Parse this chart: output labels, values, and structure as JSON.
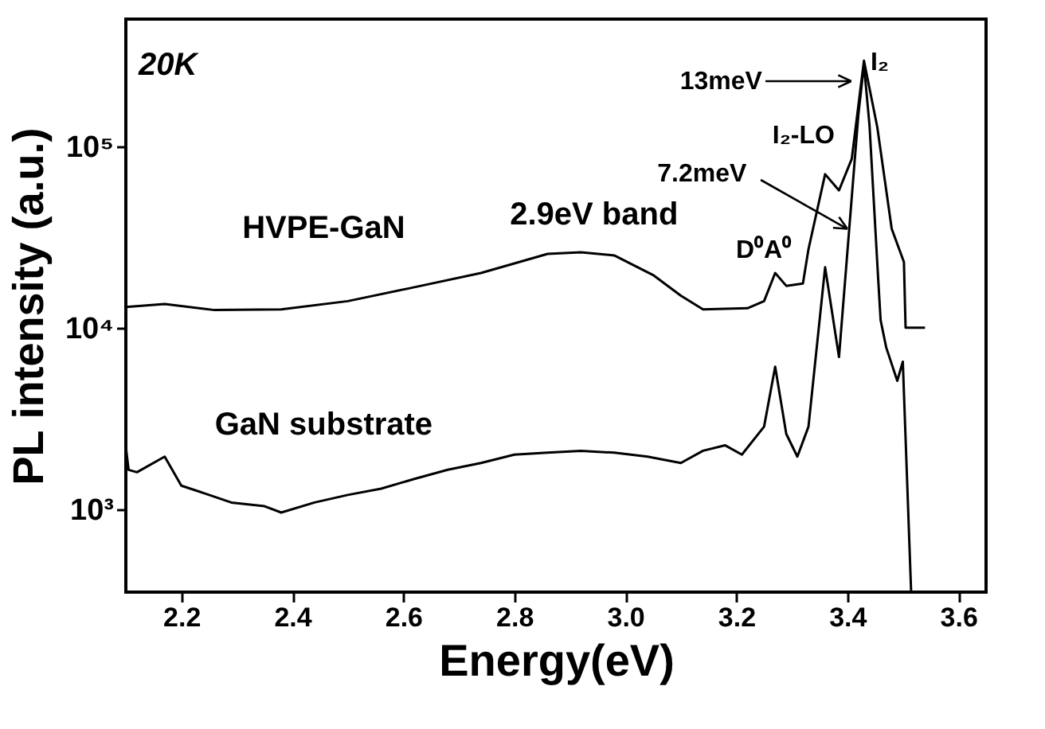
{
  "chart_data": {
    "type": "line",
    "xlabel": "Energy(eV)",
    "ylabel": "PL intensity (a.u.)",
    "log": "y",
    "grid": false,
    "xlim": [
      2.1,
      3.65
    ],
    "xticks": [
      2.2,
      2.4,
      2.6,
      2.8,
      {
        "value": 3,
        "label": "3.0"
      },
      3.2,
      3.4,
      3.6
    ],
    "ylim": [
      350,
      500000
    ],
    "yticks": [
      {
        "value": 1000,
        "label": "10³"
      },
      {
        "value": 10000,
        "label": "10⁴"
      },
      {
        "value": 100000,
        "label": "10⁵"
      }
    ],
    "series": [
      {
        "name": "HVPE-GaN",
        "color": "#000000",
        "x": [
          2.1,
          2.17,
          2.26,
          2.38,
          2.5,
          2.62,
          2.74,
          2.86,
          2.92,
          2.98,
          3.05,
          3.1,
          3.14,
          3.22,
          3.25,
          3.27,
          3.29,
          3.32,
          3.33,
          3.36,
          3.385,
          3.408,
          3.43,
          3.454,
          3.48,
          3.502,
          3.505,
          3.54
        ],
        "values": [
          13000,
          13500,
          12500,
          12600,
          14000,
          16700,
          20000,
          25500,
          26000,
          25000,
          19500,
          15000,
          12600,
          12800,
          14000,
          20000,
          17000,
          17500,
          27000,
          70000,
          57000,
          85000,
          295000,
          127000,
          35000,
          23000,
          10000,
          10000
        ]
      },
      {
        "name": "GaN substrate",
        "color": "#000000",
        "x": [
          2.1,
          2.105,
          2.12,
          2.17,
          2.2,
          2.25,
          2.29,
          2.35,
          2.38,
          2.44,
          2.5,
          2.56,
          2.62,
          2.68,
          2.74,
          2.8,
          2.86,
          2.92,
          2.98,
          3.04,
          3.1,
          3.14,
          3.18,
          3.21,
          3.25,
          3.27,
          3.29,
          3.31,
          3.33,
          3.36,
          3.385,
          3.42,
          3.43,
          3.44,
          3.455,
          3.46,
          3.47,
          3.49,
          3.5,
          3.515
        ],
        "values": [
          2200,
          1650,
          1600,
          1950,
          1350,
          1200,
          1090,
          1040,
          960,
          1090,
          1200,
          1300,
          1470,
          1650,
          1800,
          2000,
          2050,
          2100,
          2050,
          1950,
          1800,
          2100,
          2250,
          2000,
          2850,
          6100,
          2600,
          1950,
          2850,
          21500,
          6900,
          150000,
          280000,
          130000,
          20000,
          11000,
          7800,
          5100,
          6500,
          350
        ]
      }
    ],
    "annotations": [
      "20K",
      "2.9eV band",
      "D⁰A⁰",
      {
        "text": "7.2meV",
        "x": 3.4,
        "y": 35000
      },
      "I₂-LO",
      "13meV",
      "I₂"
    ]
  }
}
